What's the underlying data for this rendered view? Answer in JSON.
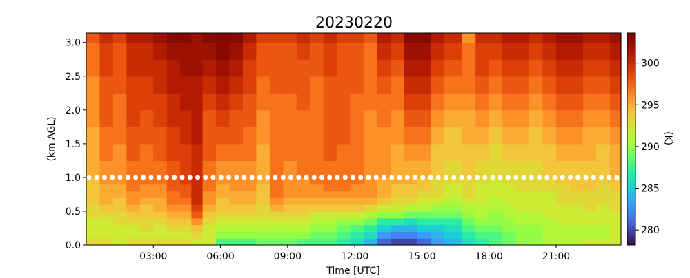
{
  "chart_data": {
    "type": "heatmap",
    "title": "20230220",
    "xlabel": "Time [UTC]",
    "ylabel": "(km AGL)",
    "colorbar_label": "(K)",
    "xlim": [
      0.0,
      23.9
    ],
    "ylim": [
      0.0,
      3.14
    ],
    "x_ticks": [
      3,
      6,
      9,
      12,
      15,
      18,
      21
    ],
    "x_tick_labels": [
      "03:00",
      "06:00",
      "09:00",
      "12:00",
      "15:00",
      "18:00",
      "21:00"
    ],
    "y_ticks": [
      0.0,
      0.5,
      1.0,
      1.5,
      2.0,
      2.5,
      3.0
    ],
    "y_tick_labels": [
      "0.0",
      "0.5",
      "1.0",
      "1.5",
      "2.0",
      "2.5",
      "3.0"
    ],
    "clim": [
      278.2,
      303.6
    ],
    "colorbar_ticks": [
      280,
      285,
      290,
      295,
      300
    ],
    "colorbar_tick_labels": [
      "280",
      "285",
      "290",
      "295",
      "300"
    ],
    "colormap": "turbo",
    "heights_km": [
      0.0,
      0.1,
      0.2,
      0.3,
      0.4,
      0.5,
      0.6,
      0.7,
      0.8,
      0.9,
      1.0,
      1.25,
      1.5,
      1.75,
      2.0,
      2.25,
      2.5,
      2.75,
      3.0
    ],
    "columns": [
      {
        "time": 0.0,
        "temps_k": [
          293,
          292,
          292,
          292,
          293,
          293,
          294,
          294,
          294,
          294,
          295,
          295,
          295,
          296,
          296,
          296,
          297,
          297,
          298
        ]
      },
      {
        "time": 0.6,
        "temps_k": [
          293,
          292,
          292,
          292,
          293,
          294,
          295,
          295,
          295,
          296,
          296,
          297,
          297,
          298,
          298,
          298,
          299,
          299,
          300
        ]
      },
      {
        "time": 1.2,
        "temps_k": [
          292,
          292,
          292,
          293,
          293,
          294,
          294,
          295,
          295,
          296,
          296,
          296,
          297,
          297,
          297,
          298,
          298,
          298,
          299
        ]
      },
      {
        "time": 1.8,
        "temps_k": [
          293,
          292,
          292,
          293,
          294,
          295,
          296,
          296,
          297,
          297,
          297,
          298,
          298,
          299,
          299,
          299,
          300,
          300,
          301
        ]
      },
      {
        "time": 2.4,
        "temps_k": [
          293,
          292,
          293,
          293,
          294,
          294,
          295,
          296,
          296,
          297,
          297,
          297,
          298,
          298,
          299,
          299,
          300,
          300,
          301
        ]
      },
      {
        "time": 3.0,
        "temps_k": [
          293,
          292,
          292,
          293,
          294,
          295,
          295,
          296,
          296,
          297,
          297,
          298,
          298,
          299,
          299,
          300,
          300,
          301,
          302
        ]
      },
      {
        "time": 3.6,
        "temps_k": [
          293,
          292,
          293,
          294,
          295,
          296,
          297,
          297,
          298,
          298,
          298,
          299,
          299,
          300,
          300,
          301,
          301,
          302,
          303
        ]
      },
      {
        "time": 4.2,
        "temps_k": [
          293,
          292,
          293,
          294,
          295,
          296,
          297,
          298,
          298,
          299,
          299,
          299,
          300,
          300,
          301,
          301,
          302,
          302,
          303
        ]
      },
      {
        "time": 4.7,
        "temps_k": [
          292,
          293,
          294,
          296,
          298,
          299,
          300,
          300,
          300,
          300,
          300,
          300,
          301,
          301,
          301,
          301,
          302,
          302,
          302
        ]
      },
      {
        "time": 5.2,
        "temps_k": [
          292,
          292,
          292,
          293,
          294,
          295,
          296,
          296,
          297,
          297,
          297,
          298,
          298,
          298,
          299,
          300,
          301,
          302,
          303
        ]
      },
      {
        "time": 5.8,
        "temps_k": [
          288,
          290,
          291,
          292,
          293,
          294,
          294,
          295,
          295,
          296,
          296,
          297,
          298,
          299,
          300,
          301,
          302,
          303,
          303
        ]
      },
      {
        "time": 6.4,
        "temps_k": [
          288,
          290,
          291,
          292,
          293,
          294,
          295,
          295,
          296,
          296,
          296,
          297,
          298,
          298,
          299,
          300,
          301,
          302,
          303
        ]
      },
      {
        "time": 7.0,
        "temps_k": [
          288,
          290,
          291,
          292,
          293,
          294,
          295,
          295,
          296,
          296,
          296,
          297,
          297,
          298,
          298,
          299,
          299,
          300,
          301
        ]
      },
      {
        "time": 7.6,
        "temps_k": [
          289,
          290,
          291,
          292,
          293,
          293,
          294,
          294,
          294,
          295,
          295,
          295,
          296,
          296,
          297,
          297,
          298,
          298,
          299
        ]
      },
      {
        "time": 8.2,
        "temps_k": [
          289,
          290,
          291,
          292,
          293,
          295,
          296,
          297,
          297,
          297,
          297,
          297,
          297,
          297,
          297,
          298,
          298,
          298,
          299
        ]
      },
      {
        "time": 8.8,
        "temps_k": [
          289,
          290,
          291,
          292,
          293,
          294,
          295,
          296,
          296,
          296,
          296,
          297,
          297,
          297,
          297,
          298,
          298,
          298,
          299
        ]
      },
      {
        "time": 9.4,
        "temps_k": [
          288,
          290,
          291,
          292,
          293,
          294,
          295,
          296,
          296,
          296,
          297,
          297,
          297,
          297,
          298,
          298,
          298,
          299,
          300
        ]
      },
      {
        "time": 10.0,
        "temps_k": [
          288,
          289,
          290,
          291,
          292,
          294,
          295,
          296,
          296,
          297,
          297,
          297,
          297,
          297,
          297,
          297,
          298,
          298,
          299
        ]
      },
      {
        "time": 10.6,
        "temps_k": [
          288,
          289,
          290,
          291,
          292,
          294,
          295,
          296,
          297,
          297,
          297,
          298,
          298,
          298,
          298,
          298,
          299,
          299,
          300
        ]
      },
      {
        "time": 11.2,
        "temps_k": [
          287,
          288,
          289,
          290,
          292,
          294,
          295,
          296,
          297,
          297,
          297,
          297,
          298,
          298,
          298,
          298,
          298,
          298,
          299
        ]
      },
      {
        "time": 11.8,
        "temps_k": [
          286,
          287,
          288,
          290,
          292,
          294,
          295,
          296,
          296,
          297,
          297,
          297,
          297,
          297,
          297,
          298,
          298,
          298,
          299
        ]
      },
      {
        "time": 12.4,
        "temps_k": [
          284,
          286,
          287,
          289,
          291,
          293,
          295,
          296,
          296,
          296,
          296,
          296,
          296,
          296,
          297,
          297,
          297,
          297,
          298
        ]
      },
      {
        "time": 13.0,
        "temps_k": [
          281,
          283,
          285,
          287,
          290,
          292,
          294,
          295,
          295,
          295,
          296,
          296,
          296,
          297,
          297,
          298,
          299,
          300,
          301
        ]
      },
      {
        "time": 13.6,
        "temps_k": [
          280,
          282,
          284,
          287,
          290,
          292,
          293,
          294,
          294,
          295,
          295,
          295,
          296,
          296,
          297,
          297,
          298,
          299,
          300
        ]
      },
      {
        "time": 14.2,
        "temps_k": [
          280,
          282,
          284,
          286,
          289,
          291,
          293,
          294,
          294,
          295,
          295,
          296,
          297,
          298,
          299,
          300,
          301,
          302,
          303
        ]
      },
      {
        "time": 14.8,
        "temps_k": [
          281,
          283,
          285,
          287,
          289,
          291,
          292,
          293,
          294,
          294,
          295,
          296,
          297,
          298,
          299,
          300,
          301,
          302,
          303
        ]
      },
      {
        "time": 15.4,
        "temps_k": [
          283,
          284,
          285,
          287,
          289,
          290,
          292,
          293,
          293,
          293,
          294,
          294,
          295,
          296,
          297,
          298,
          299,
          300,
          301
        ]
      },
      {
        "time": 16.0,
        "temps_k": [
          284,
          285,
          286,
          287,
          289,
          290,
          291,
          292,
          292,
          293,
          293,
          294,
          294,
          295,
          296,
          297,
          298,
          299,
          300
        ]
      },
      {
        "time": 16.8,
        "temps_k": [
          286,
          287,
          288,
          289,
          290,
          291,
          292,
          293,
          293,
          293,
          294,
          294,
          295,
          295,
          296,
          297,
          297,
          297,
          296
        ]
      },
      {
        "time": 17.4,
        "temps_k": [
          287,
          288,
          289,
          290,
          291,
          291,
          292,
          292,
          292,
          293,
          293,
          294,
          295,
          296,
          297,
          298,
          299,
          299,
          300
        ]
      },
      {
        "time": 18.0,
        "temps_k": [
          288,
          288,
          289,
          290,
          290,
          291,
          291,
          292,
          292,
          292,
          293,
          293,
          294,
          295,
          296,
          297,
          298,
          299,
          300
        ]
      },
      {
        "time": 18.6,
        "temps_k": [
          289,
          289,
          290,
          290,
          291,
          291,
          292,
          292,
          292,
          293,
          293,
          294,
          295,
          296,
          297,
          298,
          299,
          300,
          301
        ]
      },
      {
        "time": 19.2,
        "temps_k": [
          290,
          290,
          290,
          291,
          291,
          292,
          292,
          292,
          293,
          293,
          293,
          294,
          295,
          296,
          297,
          298,
          299,
          300,
          301
        ]
      },
      {
        "time": 19.8,
        "temps_k": [
          290,
          290,
          290,
          291,
          291,
          292,
          292,
          292,
          293,
          293,
          293,
          294,
          294,
          295,
          296,
          297,
          298,
          299,
          300
        ]
      },
      {
        "time": 20.4,
        "temps_k": [
          291,
          291,
          291,
          291,
          292,
          292,
          292,
          292,
          293,
          293,
          294,
          294,
          295,
          296,
          297,
          298,
          299,
          300,
          301
        ]
      },
      {
        "time": 21.0,
        "temps_k": [
          291,
          291,
          291,
          292,
          292,
          292,
          293,
          293,
          293,
          294,
          294,
          295,
          296,
          297,
          298,
          299,
          300,
          301,
          302
        ]
      },
      {
        "time": 21.6,
        "temps_k": [
          291,
          291,
          291,
          292,
          292,
          292,
          293,
          293,
          294,
          294,
          294,
          295,
          296,
          297,
          298,
          299,
          300,
          301,
          302
        ]
      },
      {
        "time": 22.2,
        "temps_k": [
          292,
          291,
          291,
          292,
          292,
          293,
          293,
          293,
          294,
          294,
          294,
          295,
          295,
          296,
          297,
          298,
          299,
          300,
          301
        ]
      },
      {
        "time": 22.8,
        "temps_k": [
          292,
          291,
          291,
          292,
          292,
          292,
          293,
          293,
          293,
          294,
          294,
          294,
          295,
          296,
          297,
          298,
          299,
          300,
          301
        ]
      },
      {
        "time": 23.4,
        "temps_k": [
          292,
          292,
          292,
          292,
          292,
          293,
          293,
          293,
          294,
          294,
          295,
          295,
          296,
          297,
          298,
          299,
          300,
          301,
          302
        ]
      }
    ],
    "marker_line": {
      "y": 1.0,
      "style": "white dotted"
    }
  }
}
